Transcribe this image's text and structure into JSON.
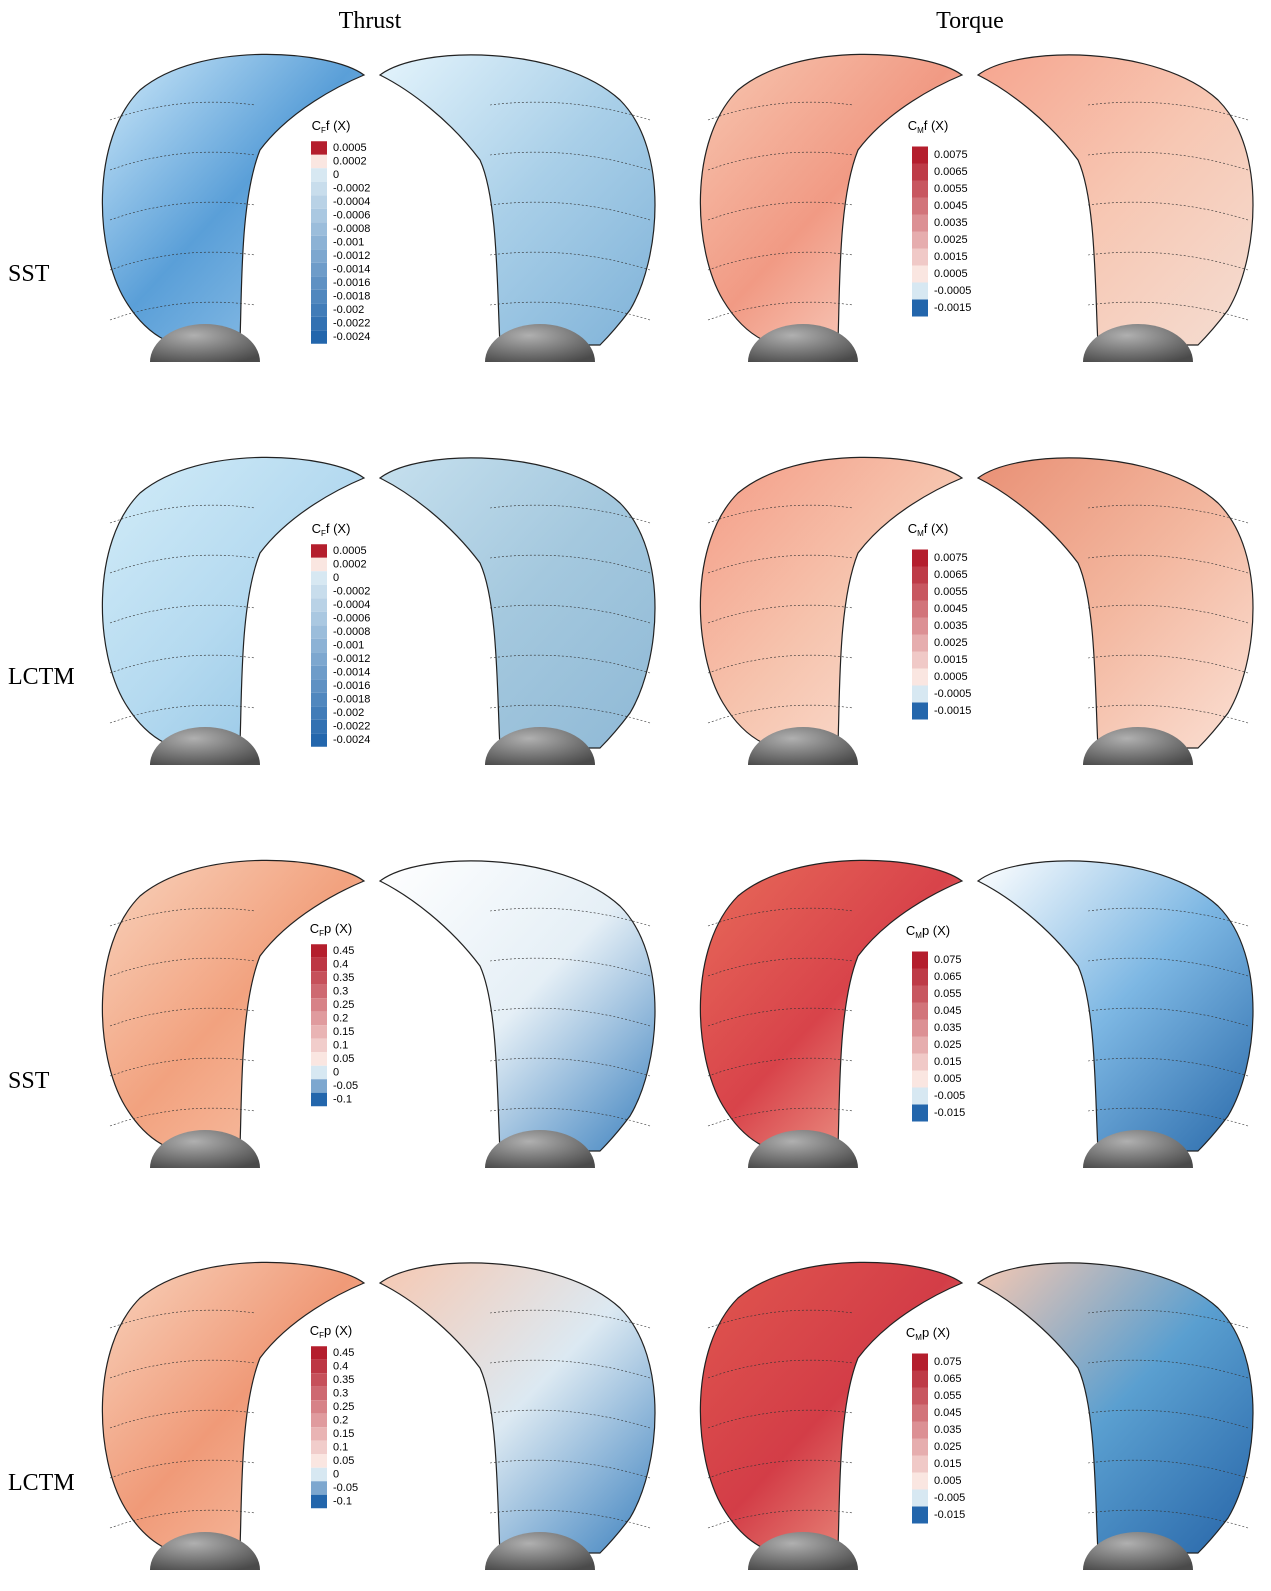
{
  "columns": [
    "Thrust",
    "Torque"
  ],
  "rows": [
    {
      "label": "SST",
      "panels": [
        {
          "legend": {
            "symbol": "C",
            "subscript": "F",
            "suffix": "f (X)",
            "labels": [
              "0.0005",
              "0.0002",
              "0",
              "-0.0002",
              "-0.0004",
              "-0.0006",
              "-0.0008",
              "-0.001",
              "-0.0012",
              "-0.0014",
              "-0.0016",
              "-0.0018",
              "-0.002",
              "-0.0022",
              "-0.0024"
            ]
          }
        },
        {
          "legend": {
            "symbol": "C",
            "subscript": "M",
            "suffix": "f (X)",
            "labels": [
              "0.0075",
              "0.0065",
              "0.0055",
              "0.0045",
              "0.0035",
              "0.0025",
              "0.0015",
              "0.0005",
              "-0.0005",
              "-0.0015"
            ]
          }
        }
      ]
    },
    {
      "label": "LCTM",
      "panels": [
        {
          "legend": {
            "symbol": "C",
            "subscript": "F",
            "suffix": "f (X)",
            "labels": [
              "0.0005",
              "0.0002",
              "0",
              "-0.0002",
              "-0.0004",
              "-0.0006",
              "-0.0008",
              "-0.001",
              "-0.0012",
              "-0.0014",
              "-0.0016",
              "-0.0018",
              "-0.002",
              "-0.0022",
              "-0.0024"
            ]
          }
        },
        {
          "legend": {
            "symbol": "C",
            "subscript": "M",
            "suffix": "f (X)",
            "labels": [
              "0.0075",
              "0.0065",
              "0.0055",
              "0.0045",
              "0.0035",
              "0.0025",
              "0.0015",
              "0.0005",
              "-0.0005",
              "-0.0015"
            ]
          }
        }
      ]
    },
    {
      "label": "SST",
      "panels": [
        {
          "legend": {
            "symbol": "C",
            "subscript": "F",
            "suffix": "p (X)",
            "labels": [
              "0.45",
              "0.4",
              "0.35",
              "0.3",
              "0.25",
              "0.2",
              "0.15",
              "0.1",
              "0.05",
              "0",
              "-0.05",
              "-0.1"
            ]
          }
        },
        {
          "legend": {
            "symbol": "C",
            "subscript": "M",
            "suffix": "p (X)",
            "labels": [
              "0.075",
              "0.065",
              "0.055",
              "0.045",
              "0.035",
              "0.025",
              "0.015",
              "0.005",
              "-0.005",
              "-0.015"
            ]
          }
        }
      ]
    },
    {
      "label": "LCTM",
      "panels": [
        {
          "legend": {
            "symbol": "C",
            "subscript": "F",
            "suffix": "p (X)",
            "labels": [
              "0.45",
              "0.4",
              "0.35",
              "0.3",
              "0.25",
              "0.2",
              "0.15",
              "0.1",
              "0.05",
              "0",
              "-0.05",
              "-0.1"
            ]
          }
        },
        {
          "legend": {
            "symbol": "C",
            "subscript": "M",
            "suffix": "p (X)",
            "labels": [
              "0.075",
              "0.065",
              "0.055",
              "0.045",
              "0.035",
              "0.025",
              "0.015",
              "0.005",
              "-0.005",
              "-0.015"
            ]
          }
        }
      ]
    }
  ]
}
